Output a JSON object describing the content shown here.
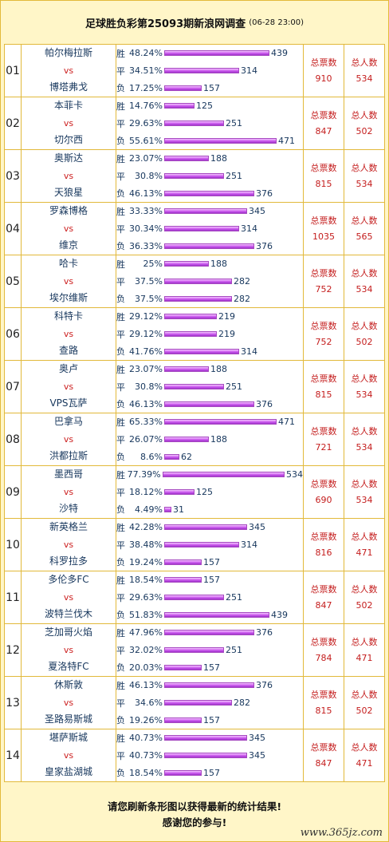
{
  "header": {
    "title": "足球胜负彩第25093期新浪网调查",
    "timestamp": "(06-28 23:00)"
  },
  "labels": {
    "win": "胜",
    "draw": "平",
    "loss": "负",
    "vs": "vs",
    "total_votes": "总票数",
    "total_people": "总人数"
  },
  "colors": {
    "border": "#e2b93a",
    "background": "#fff6c8",
    "bar": "#d062f0",
    "number_red": "#c41d1d",
    "text_blue": "#16365c"
  },
  "matches": [
    {
      "no": "01",
      "home": "帕尔梅拉斯",
      "away": "博塔弗戈",
      "win_pct": "48.24%",
      "win_cnt": "439",
      "draw_pct": "34.51%",
      "draw_cnt": "314",
      "loss_pct": "17.25%",
      "loss_cnt": "157",
      "votes": "910",
      "people": "534"
    },
    {
      "no": "02",
      "home": "本菲卡",
      "away": "切尔西",
      "win_pct": "14.76%",
      "win_cnt": "125",
      "draw_pct": "29.63%",
      "draw_cnt": "251",
      "loss_pct": "55.61%",
      "loss_cnt": "471",
      "votes": "847",
      "people": "502"
    },
    {
      "no": "03",
      "home": "奥斯达",
      "away": "天狼星",
      "win_pct": "23.07%",
      "win_cnt": "188",
      "draw_pct": "30.8%",
      "draw_cnt": "251",
      "loss_pct": "46.13%",
      "loss_cnt": "376",
      "votes": "815",
      "people": "534"
    },
    {
      "no": "04",
      "home": "罗森博格",
      "away": "维京",
      "win_pct": "33.33%",
      "win_cnt": "345",
      "draw_pct": "30.34%",
      "draw_cnt": "314",
      "loss_pct": "36.33%",
      "loss_cnt": "376",
      "votes": "1035",
      "people": "565"
    },
    {
      "no": "05",
      "home": "哈卡",
      "away": "埃尔维斯",
      "win_pct": "25%",
      "win_cnt": "188",
      "draw_pct": "37.5%",
      "draw_cnt": "282",
      "loss_pct": "37.5%",
      "loss_cnt": "282",
      "votes": "752",
      "people": "534"
    },
    {
      "no": "06",
      "home": "科特卡",
      "away": "查路",
      "win_pct": "29.12%",
      "win_cnt": "219",
      "draw_pct": "29.12%",
      "draw_cnt": "219",
      "loss_pct": "41.76%",
      "loss_cnt": "314",
      "votes": "752",
      "people": "502"
    },
    {
      "no": "07",
      "home": "奥卢",
      "away": "VPS瓦萨",
      "win_pct": "23.07%",
      "win_cnt": "188",
      "draw_pct": "30.8%",
      "draw_cnt": "251",
      "loss_pct": "46.13%",
      "loss_cnt": "376",
      "votes": "815",
      "people": "534"
    },
    {
      "no": "08",
      "home": "巴拿马",
      "away": "洪都拉斯",
      "win_pct": "65.33%",
      "win_cnt": "471",
      "draw_pct": "26.07%",
      "draw_cnt": "188",
      "loss_pct": "8.6%",
      "loss_cnt": "62",
      "votes": "721",
      "people": "534"
    },
    {
      "no": "09",
      "home": "墨西哥",
      "away": "沙特",
      "win_pct": "77.39%",
      "win_cnt": "534",
      "draw_pct": "18.12%",
      "draw_cnt": "125",
      "loss_pct": "4.49%",
      "loss_cnt": "31",
      "votes": "690",
      "people": "534"
    },
    {
      "no": "10",
      "home": "新英格兰",
      "away": "科罗拉多",
      "win_pct": "42.28%",
      "win_cnt": "345",
      "draw_pct": "38.48%",
      "draw_cnt": "314",
      "loss_pct": "19.24%",
      "loss_cnt": "157",
      "votes": "816",
      "people": "471"
    },
    {
      "no": "11",
      "home": "多伦多FC",
      "away": "波特兰伐木",
      "win_pct": "18.54%",
      "win_cnt": "157",
      "draw_pct": "29.63%",
      "draw_cnt": "251",
      "loss_pct": "51.83%",
      "loss_cnt": "439",
      "votes": "847",
      "people": "502"
    },
    {
      "no": "12",
      "home": "芝加哥火焰",
      "away": "夏洛特FC",
      "win_pct": "47.96%",
      "win_cnt": "376",
      "draw_pct": "32.02%",
      "draw_cnt": "251",
      "loss_pct": "20.03%",
      "loss_cnt": "157",
      "votes": "784",
      "people": "471"
    },
    {
      "no": "13",
      "home": "休斯敦",
      "away": "圣路易斯城",
      "win_pct": "46.13%",
      "win_cnt": "376",
      "draw_pct": "34.6%",
      "draw_cnt": "282",
      "loss_pct": "19.26%",
      "loss_cnt": "157",
      "votes": "815",
      "people": "502"
    },
    {
      "no": "14",
      "home": "堪萨斯城",
      "away": "皇家盐湖城",
      "win_pct": "40.73%",
      "win_cnt": "345",
      "draw_pct": "40.73%",
      "draw_cnt": "345",
      "loss_pct": "18.54%",
      "loss_cnt": "157",
      "votes": "847",
      "people": "471"
    }
  ],
  "footer": {
    "line1": "请您刷新条形图以获得最新的统计结果!",
    "line2": "感谢您的参与!"
  },
  "watermark": "www.365jz.com"
}
